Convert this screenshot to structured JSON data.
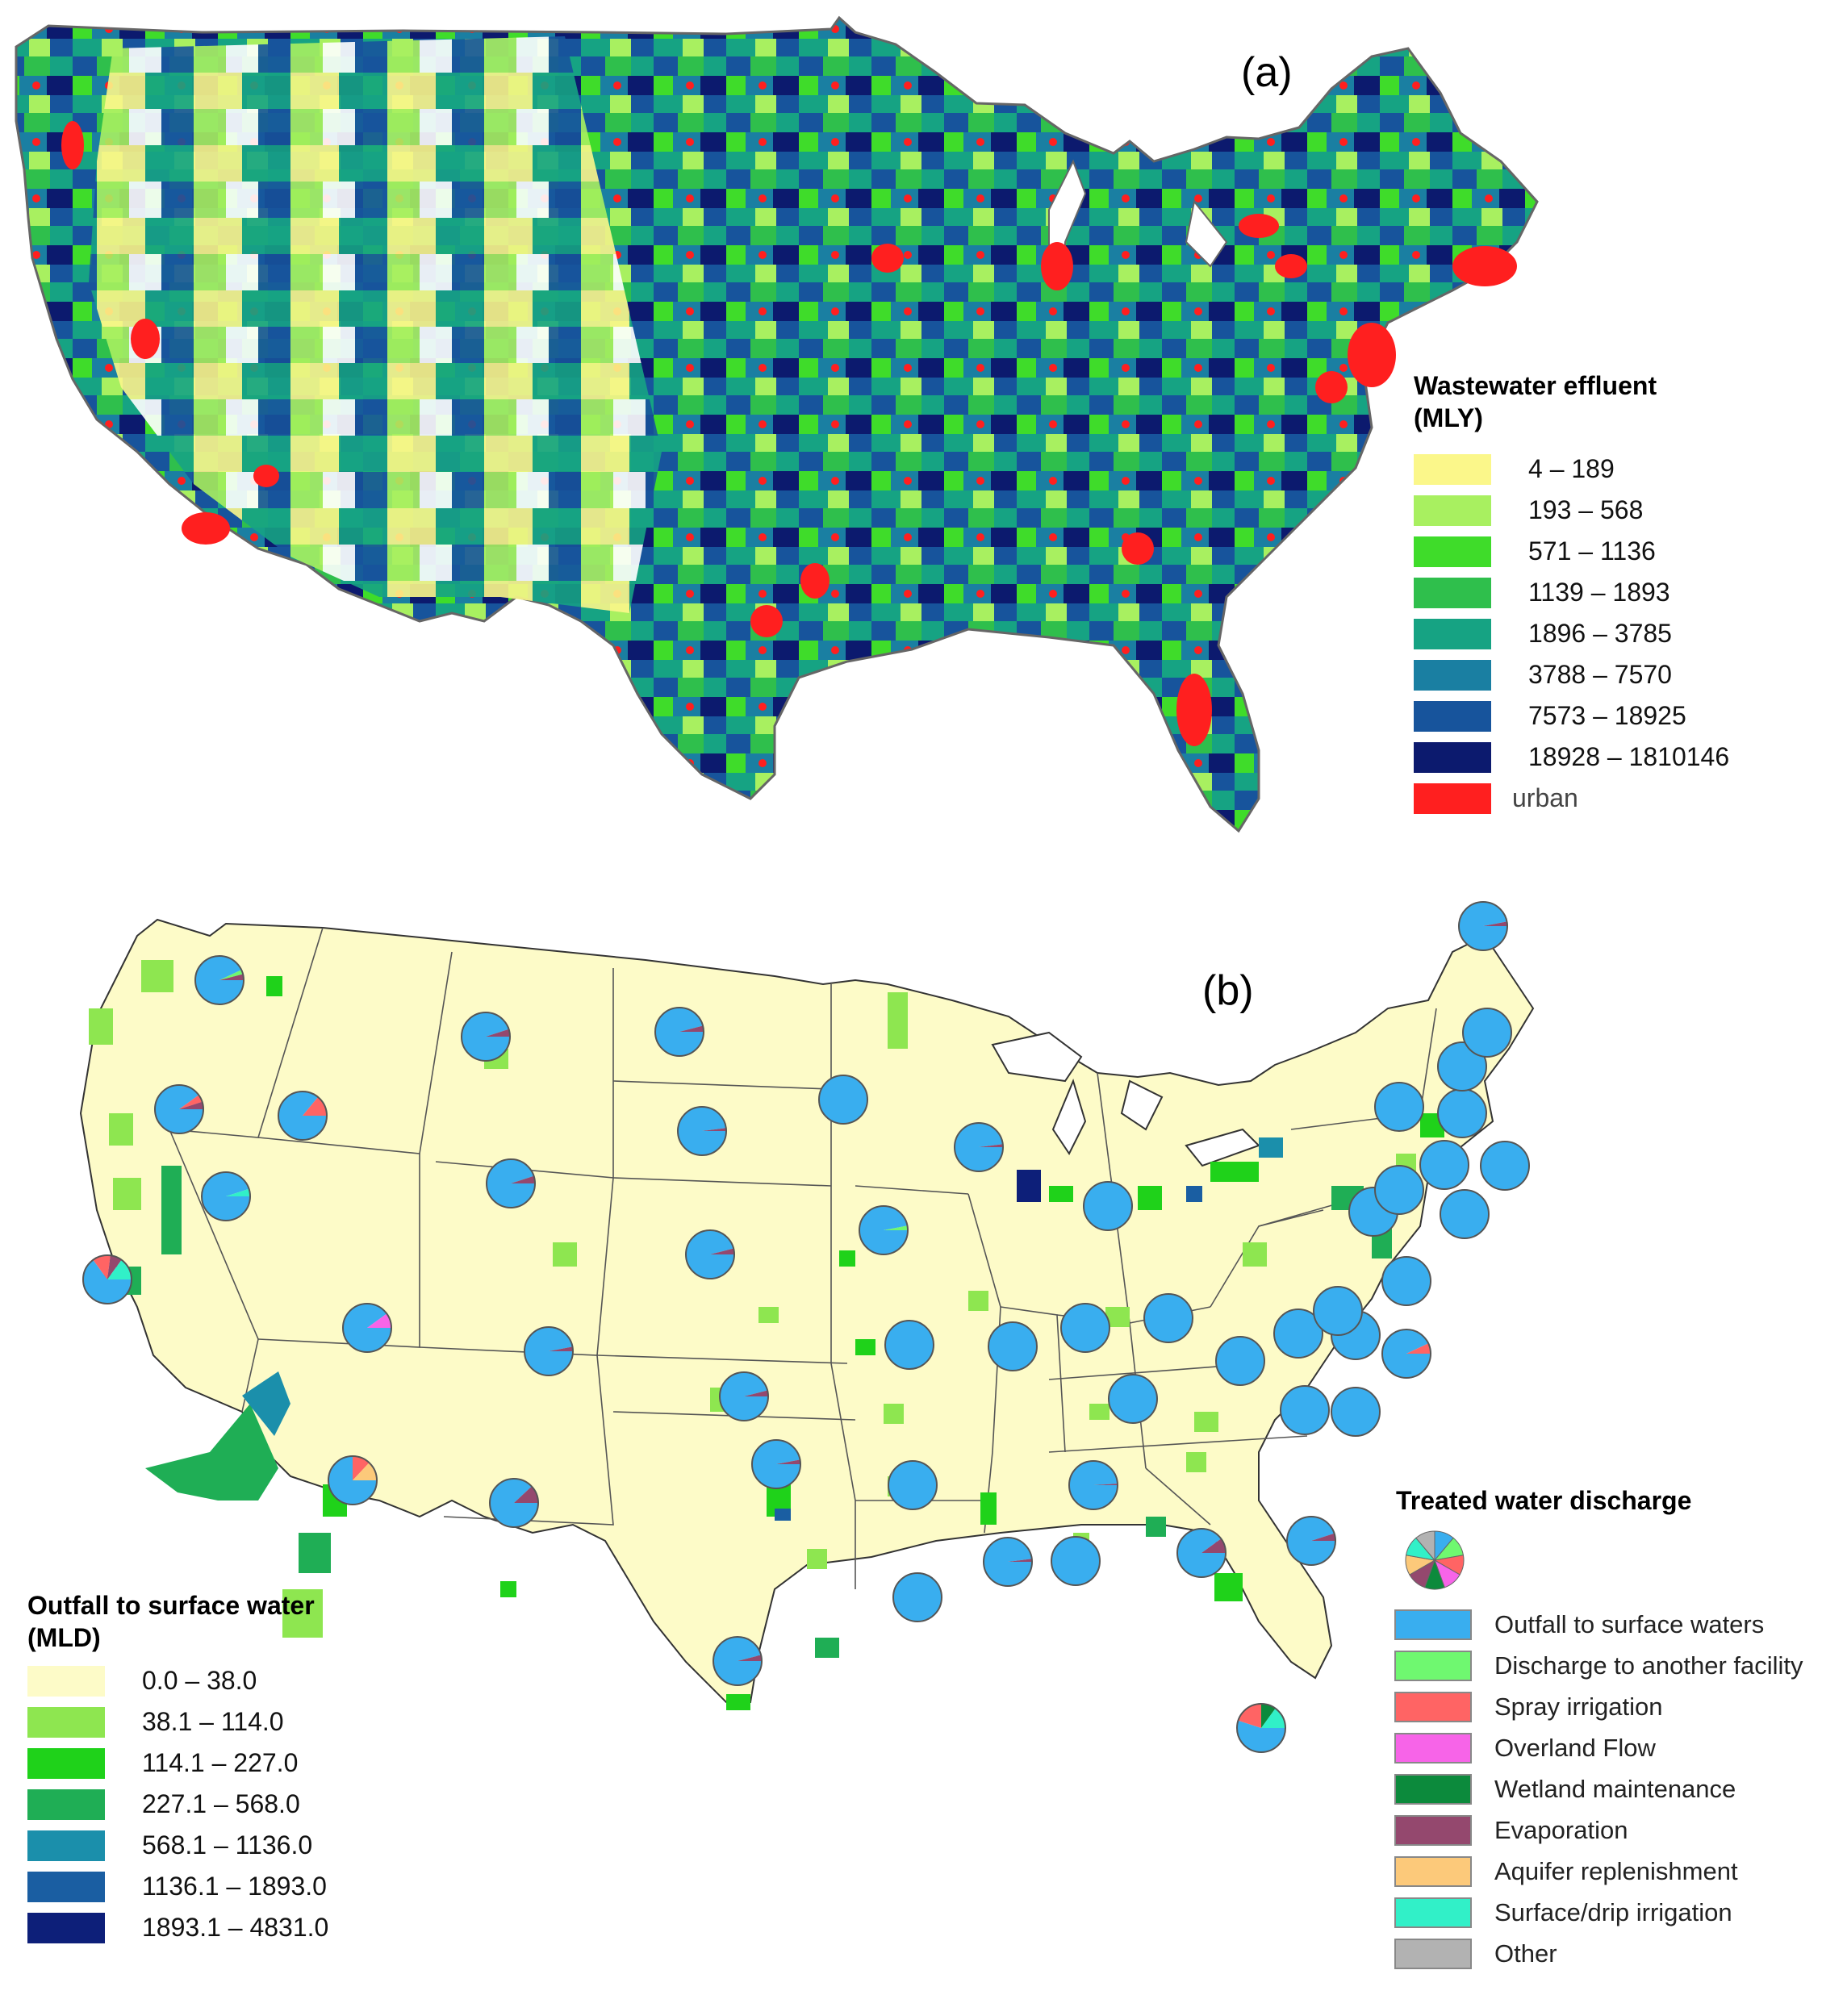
{
  "panel_a": {
    "label": "(a)",
    "legend": {
      "title_line1": "Wastewater effluent",
      "title_line2": "(MLY)",
      "items": [
        {
          "label": "4  – 189",
          "color": "#fbf78a"
        },
        {
          "label": "193 – 568",
          "color": "#a8f060"
        },
        {
          "label": "571 – 1136",
          "color": "#3fdc2a"
        },
        {
          "label": "1139 – 1893",
          "color": "#2fbf4c"
        },
        {
          "label": "1896 – 3785",
          "color": "#16a383"
        },
        {
          "label": "3788 – 7570",
          "color": "#1a7fa2"
        },
        {
          "label": "7573 – 18925",
          "color": "#17549c"
        },
        {
          "label": "18928 –  1810146",
          "color": "#0c1a6e"
        },
        {
          "label": "urban",
          "color": "#ff1f1f"
        }
      ]
    }
  },
  "panel_b": {
    "label": "(b)",
    "legend_left": {
      "title_line1": "Outfall to surface water",
      "title_line2": "(MLD)",
      "items": [
        {
          "label": "0.0 – 38.0",
          "color": "#fdfbc8"
        },
        {
          "label": "38.1 – 114.0",
          "color": "#8ee650"
        },
        {
          "label": "114.1 – 227.0",
          "color": "#1fd21a"
        },
        {
          "label": "227.1 – 568.0",
          "color": "#1fae55"
        },
        {
          "label": "568.1 – 1136.0",
          "color": "#1b8fab"
        },
        {
          "label": "1136.1 – 1893.0",
          "color": "#1a5ea2"
        },
        {
          "label": "1893.1 – 4831.0",
          "color": "#0d1f79"
        }
      ]
    },
    "legend_right": {
      "title": "Treated water discharge",
      "items": [
        {
          "label": "Outfall  to surface waters",
          "color": "#39aeef"
        },
        {
          "label": "Discharge to another facility",
          "color": "#6ff870"
        },
        {
          "label": "Spray irrigation",
          "color": "#ff6464"
        },
        {
          "label": "Overland  Flow",
          "color": "#f764e8"
        },
        {
          "label": "Wetland maintenance",
          "color": "#0c8a3c"
        },
        {
          "label": "Evaporation",
          "color": "#94486e"
        },
        {
          "label": "Aquifer replenishment",
          "color": "#fcc97a"
        },
        {
          "label": "Surface/drip irrigation",
          "color": "#31f0c8"
        },
        {
          "label": "Other",
          "color": "#b2b2b2"
        }
      ]
    }
  }
}
